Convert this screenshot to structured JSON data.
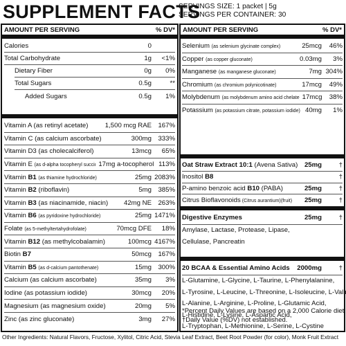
{
  "header": {
    "title": "SUPPLEMENT FACTS",
    "serving_size": "SERVINGS SIZE: 1 packet | 5g",
    "servings_per_container": "SERVINGS PER CONTAINER: 30"
  },
  "left_panel": {
    "col_amount": "AMOUNT PER SERVING",
    "col_dv": "% DV*",
    "macros": [
      {
        "label": "Calories",
        "amount": "0",
        "dv": ""
      },
      {
        "label": "Total Carbohydrate",
        "amount": "1g",
        "dv": "<1%"
      },
      {
        "label": "Dietary Fiber",
        "amount": "0g",
        "dv": "0%"
      },
      {
        "label": "Total Sugars",
        "amount": "0.5g",
        "dv": "**"
      },
      {
        "label": "Added Sugars",
        "amount": "0.5g",
        "dv": "1%"
      }
    ],
    "vitamins": [
      {
        "name": "Vitamin A",
        "bname": "",
        "form": "(as retinyl acetate)",
        "amount": "1,500 mcg RAE",
        "dv": "167%"
      },
      {
        "name": "Vitamin C",
        "bname": "",
        "form": "(as calcium ascorbate)",
        "amount": "300mg",
        "dv": "333%"
      },
      {
        "name": "Vitamin D3",
        "bname": "",
        "form": "(as cholecalciferol)",
        "amount": "13mcg",
        "dv": "65%"
      },
      {
        "name": "Vitamin E",
        "bname": "",
        "form": "(as d-alpha tocopheryl succinate)",
        "amount": "17mg a-tocopherol",
        "dv": "113%"
      },
      {
        "name": "Vitamin ",
        "bname": "B1",
        "form": "(as thiamine hydrochloride)",
        "amount": "25mg",
        "dv": "2083%"
      },
      {
        "name": "Vitamin ",
        "bname": "B2",
        "form": "(riboflavin)",
        "amount": "5mg",
        "dv": "385%"
      },
      {
        "name": "Vitamin ",
        "bname": "B3",
        "form": "(as niacinamide, niacin)",
        "amount": "42mg NE",
        "dv": "263%"
      },
      {
        "name": "Vitamin ",
        "bname": "B6",
        "form": "(as pyridoxine hydrochloride)",
        "amount": "25mg",
        "dv": "1471%"
      },
      {
        "name": "Folate",
        "bname": "",
        "form": "(as 5-methyltertahydrofolate)",
        "amount": "70mcg DFE",
        "dv": "18%"
      },
      {
        "name": "Vitamin ",
        "bname": "B12",
        "form": "(as methylcobalamin)",
        "amount": "100mcg",
        "dv": "4167%"
      },
      {
        "name": "Biotin ",
        "bname": "B7",
        "form": "",
        "amount": "50mcg",
        "dv": "167%"
      },
      {
        "name": "Vitamin ",
        "bname": "B5",
        "form": "(as d-calcium pantothenate)",
        "amount": "15mg",
        "dv": "300%"
      },
      {
        "name": "Calcium",
        "bname": "",
        "form": "(as calcium ascorbate)",
        "amount": "35mg",
        "dv": "3%"
      },
      {
        "name": "Iodine",
        "bname": "",
        "form": "(as potassium iodide)",
        "amount": "30mcg",
        "dv": "20%"
      },
      {
        "name": "Magnesium",
        "bname": "",
        "form": "(as magnesium oxide)",
        "amount": "20mg",
        "dv": "5%"
      },
      {
        "name": "Zinc",
        "bname": "",
        "form": "(as zinc gluconate)",
        "amount": "3mg",
        "dv": "27%"
      }
    ]
  },
  "right_panel": {
    "col_amount": "AMOUNT PER SERVING",
    "col_dv": "% DV*",
    "minerals": [
      {
        "name": "Selenium",
        "form": "(as selenium glycinate complex)",
        "amount": "25mcg",
        "dv": "46%"
      },
      {
        "name": "Copper",
        "form": "(as copper gluconate)",
        "amount": "0.03mg",
        "dv": "3%"
      },
      {
        "name": "Manganese",
        "form": "(as manganese gluconate)",
        "amount": "7mg",
        "dv": "304%"
      },
      {
        "name": "Chromium",
        "form": "(as chromium polynicotinate)",
        "amount": "17mcg",
        "dv": "49%"
      },
      {
        "name": "Molybdenum",
        "form": "(as molybdenum amino acid chelate)",
        "amount": "17mcg",
        "dv": "38%"
      },
      {
        "name": "Potassium",
        "form": "(as potassium citrate, potassium iodide)",
        "amount": "40mg",
        "dv": "1%"
      }
    ],
    "oat": [
      {
        "name": "Oat Straw Extract 10:1",
        "form": " (Avena Sativa)",
        "amount": "25mg",
        "dv": "†",
        "bold": true
      },
      {
        "name": "Inositol ",
        "bpart": "B8",
        "form": "",
        "amount": "",
        "dv": "†",
        "bold": false
      },
      {
        "name": "P-amino benzoic acid ",
        "bpart": "B10",
        "form": " (PABA)",
        "amount": "25mg",
        "dv": "†",
        "bold": false
      },
      {
        "name": "Citrus Bioflavonoids",
        "bpart": "",
        "form": " (Citrus aurantium)(fruit)",
        "amount": "25mg",
        "dv": "†",
        "bold": false
      }
    ],
    "enzymes": {
      "title": "Digestive Enzymes",
      "amount": "25mg",
      "dv": "†",
      "lines": [
        "Amylase, Lactase, Protease, Lipase,",
        "Cellulase, Pancreatin"
      ]
    },
    "bcaa": {
      "title": "20 BCAA & Essential Amino Acids",
      "amount": "2000mg",
      "dv": "†",
      "lines": [
        "L-Glutamine, L-Glycine, L-Taurine, L-Phenylalanine,",
        "L-Tyrosine, L-Leucine, L-Threonine, L-Isoleucine, L-Valine,",
        "L-Alanine, L-Arginine, L-Proline, L-Glutamic Acid,",
        "L-Histidine, L-Lysine, L-Aspartic Acid,",
        "L-Tryptophan, L-Methionine, L-Serine, L-Cystine"
      ]
    },
    "footnotes": [
      "*Percent Daily Values are based on a 2,000 Calorie diet.",
      "†Daily Value (%DV) not established."
    ]
  },
  "other_ingredients": "Other Ingredients: Natural Flavors, Fructose, Xylitol, Citric Acid, Stevia Leaf Extract, Beet Root Powder (for color), Monk Fruit Extract"
}
